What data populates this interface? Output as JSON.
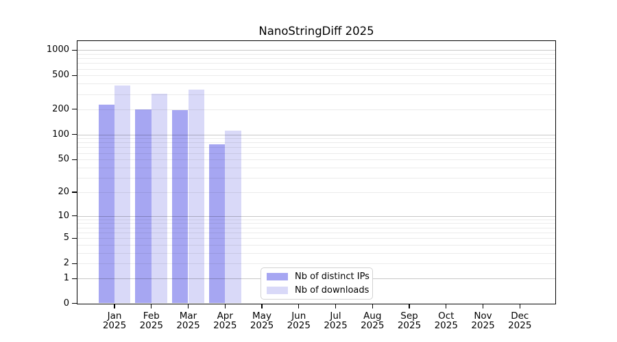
{
  "title": "NanoStringDiff 2025",
  "chart_data": {
    "type": "bar",
    "title": "NanoStringDiff 2025",
    "categories": [
      "Jan 2025",
      "Feb 2025",
      "Mar 2025",
      "Apr 2025",
      "May 2025",
      "Jun 2025",
      "Jul 2025",
      "Aug 2025",
      "Sep 2025",
      "Oct 2025",
      "Nov 2025",
      "Dec 2025"
    ],
    "series": [
      {
        "name": "Nb of distinct IPs",
        "color": "#a6a6f2",
        "values": [
          227,
          198,
          195,
          76,
          0,
          0,
          0,
          0,
          0,
          0,
          0,
          0
        ]
      },
      {
        "name": "Nb of downloads",
        "color": "#d9d9f8",
        "values": [
          379,
          307,
          341,
          111,
          0,
          0,
          0,
          0,
          0,
          0,
          0,
          0
        ]
      }
    ],
    "yscale": "log1p",
    "yticks": [
      0,
      1,
      2,
      5,
      10,
      20,
      50,
      100,
      200,
      500,
      1000
    ],
    "ylim": [
      0,
      1300
    ],
    "xlabel": "",
    "ylabel": "",
    "grid": "horizontal, minor log lines, majors at decades",
    "legend_position": "lower center inside plot"
  },
  "colors": {
    "major_gridline": "rgba(0,0,0,0.22)",
    "minor_gridline": "rgba(0,0,0,0.08)",
    "axis": "#000000",
    "background": "#ffffff"
  }
}
